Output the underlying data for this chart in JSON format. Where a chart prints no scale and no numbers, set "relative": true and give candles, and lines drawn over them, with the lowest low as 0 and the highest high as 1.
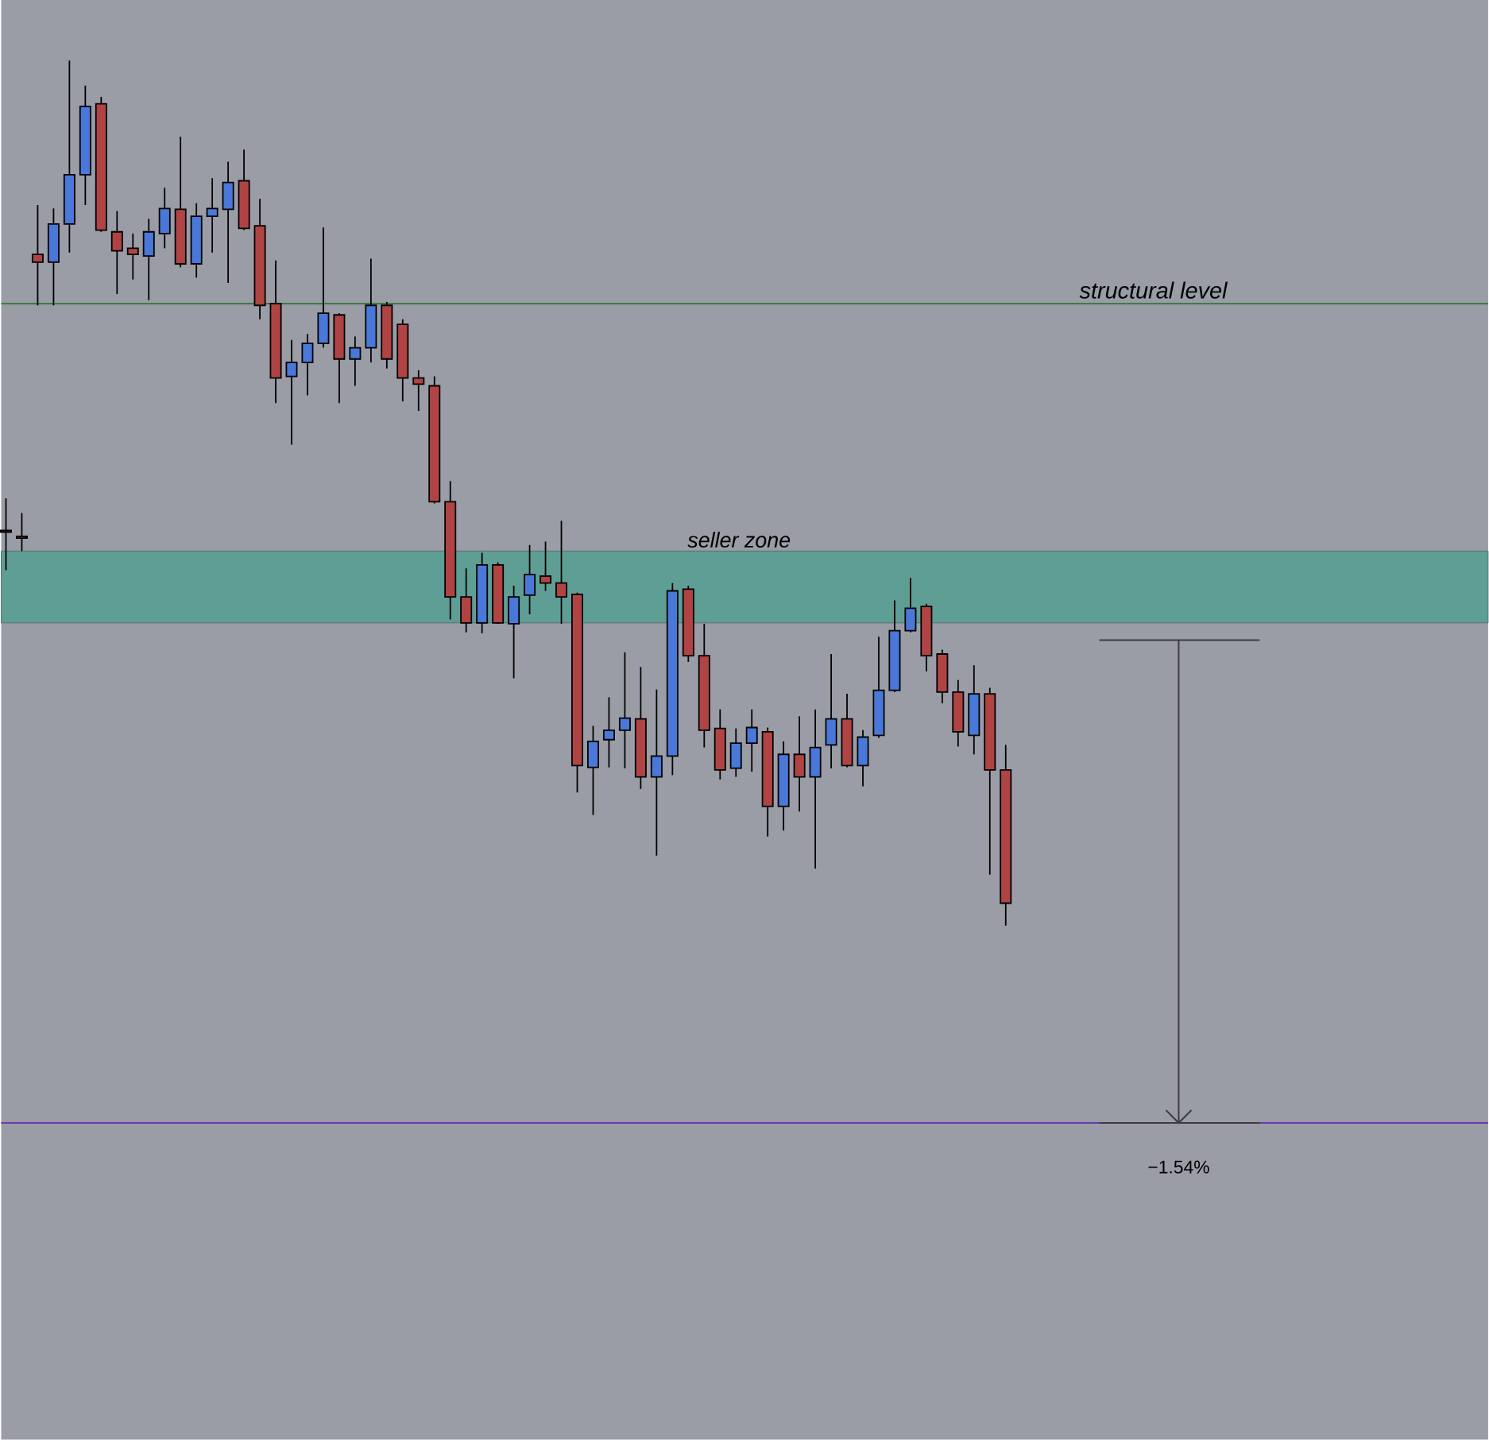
{
  "chart_data": {
    "type": "candlestick",
    "relative": true,
    "categories": [
      null,
      null,
      null,
      null,
      null,
      null,
      null,
      null,
      null,
      null,
      null,
      null,
      null,
      null,
      null,
      null,
      null,
      null,
      null,
      null,
      null,
      null,
      null,
      null,
      null,
      null,
      null,
      null,
      null,
      null,
      null,
      null,
      null,
      null,
      null,
      null,
      null,
      null,
      null,
      null,
      null,
      null,
      null,
      null,
      null,
      null,
      null,
      null,
      null,
      null,
      null,
      null,
      null,
      null,
      null,
      null,
      null,
      null,
      null,
      null,
      null,
      null,
      null,
      null
    ],
    "ohlc": [
      [
        0.457,
        0.494,
        0.411,
        0.455
      ],
      [
        0.45,
        0.477,
        0.433,
        0.448
      ],
      [
        0.776,
        0.833,
        0.717,
        0.767
      ],
      [
        0.767,
        0.829,
        0.717,
        0.811
      ],
      [
        0.811,
        1.0,
        0.778,
        0.868
      ],
      [
        0.868,
        0.971,
        0.833,
        0.947
      ],
      [
        0.95,
        0.958,
        0.802,
        0.804
      ],
      [
        0.802,
        0.826,
        0.73,
        0.78
      ],
      [
        0.783,
        0.8,
        0.747,
        0.776
      ],
      [
        0.774,
        0.817,
        0.723,
        0.802
      ],
      [
        0.8,
        0.853,
        0.783,
        0.829
      ],
      [
        0.828,
        0.912,
        0.761,
        0.765
      ],
      [
        0.765,
        0.835,
        0.749,
        0.82
      ],
      [
        0.82,
        0.864,
        0.778,
        0.829
      ],
      [
        0.828,
        0.883,
        0.743,
        0.859
      ],
      [
        0.861,
        0.897,
        0.804,
        0.806
      ],
      [
        0.809,
        0.84,
        0.701,
        0.717
      ],
      [
        0.719,
        0.769,
        0.604,
        0.633
      ],
      [
        0.635,
        0.677,
        0.556,
        0.651
      ],
      [
        0.651,
        0.684,
        0.613,
        0.673
      ],
      [
        0.673,
        0.807,
        0.668,
        0.708
      ],
      [
        0.706,
        0.708,
        0.604,
        0.655
      ],
      [
        0.655,
        0.681,
        0.624,
        0.668
      ],
      [
        0.668,
        0.771,
        0.651,
        0.717
      ],
      [
        0.717,
        0.721,
        0.644,
        0.655
      ],
      [
        0.695,
        0.701,
        0.606,
        0.633
      ],
      [
        0.633,
        0.642,
        0.595,
        0.626
      ],
      [
        0.624,
        0.635,
        0.488,
        0.49
      ],
      [
        0.49,
        0.514,
        0.354,
        0.38
      ],
      [
        0.38,
        0.413,
        0.339,
        0.35
      ],
      [
        0.35,
        0.431,
        0.338,
        0.417
      ],
      [
        0.417,
        0.42,
        0.349,
        0.35
      ],
      [
        0.349,
        0.393,
        0.286,
        0.38
      ],
      [
        0.382,
        0.44,
        0.36,
        0.406
      ],
      [
        0.404,
        0.444,
        0.387,
        0.396
      ],
      [
        0.396,
        0.468,
        0.349,
        0.38
      ],
      [
        0.383,
        0.385,
        0.154,
        0.185
      ],
      [
        0.183,
        0.231,
        0.128,
        0.213
      ],
      [
        0.215,
        0.264,
        0.183,
        0.226
      ],
      [
        0.226,
        0.316,
        0.182,
        0.24
      ],
      [
        0.239,
        0.299,
        0.158,
        0.172
      ],
      [
        0.172,
        0.273,
        0.081,
        0.196
      ],
      [
        0.196,
        0.396,
        0.174,
        0.387
      ],
      [
        0.389,
        0.393,
        0.305,
        0.312
      ],
      [
        0.312,
        0.349,
        0.206,
        0.226
      ],
      [
        0.228,
        0.25,
        0.169,
        0.18
      ],
      [
        0.182,
        0.228,
        0.172,
        0.211
      ],
      [
        0.211,
        0.25,
        0.178,
        0.229
      ],
      [
        0.224,
        0.229,
        0.103,
        0.138
      ],
      [
        0.138,
        0.213,
        0.11,
        0.198
      ],
      [
        0.198,
        0.242,
        0.132,
        0.172
      ],
      [
        0.172,
        0.25,
        0.066,
        0.206
      ],
      [
        0.209,
        0.314,
        0.182,
        0.239
      ],
      [
        0.239,
        0.268,
        0.183,
        0.185
      ],
      [
        0.185,
        0.226,
        0.161,
        0.218
      ],
      [
        0.22,
        0.334,
        0.217,
        0.272
      ],
      [
        0.272,
        0.376,
        0.27,
        0.341
      ],
      [
        0.341,
        0.402,
        0.339,
        0.367
      ],
      [
        0.369,
        0.372,
        0.294,
        0.312
      ],
      [
        0.314,
        0.319,
        0.257,
        0.27
      ],
      [
        0.27,
        0.284,
        0.207,
        0.224
      ],
      [
        0.22,
        0.301,
        0.198,
        0.268
      ],
      [
        0.268,
        0.275,
        0.059,
        0.18
      ],
      [
        0.18,
        0.209,
        0.0,
        0.026
      ]
    ],
    "colors": [
      "#b04444",
      "#b04444",
      "#b04444",
      "#4a78d8",
      "#4a78d8",
      "#4a78d8",
      "#b04444",
      "#b04444",
      "#b04444",
      "#4a78d8",
      "#4a78d8",
      "#b04444",
      "#4a78d8",
      "#4a78d8",
      "#4a78d8",
      "#b04444",
      "#b04444",
      "#b04444",
      "#4a78d8",
      "#4a78d8",
      "#4a78d8",
      "#b04444",
      "#4a78d8",
      "#4a78d8",
      "#b04444",
      "#b04444",
      "#b04444",
      "#b04444",
      "#b04444",
      "#b04444",
      "#4a78d8",
      "#b04444",
      "#4a78d8",
      "#4a78d8",
      "#b04444",
      "#b04444",
      "#b04444",
      "#4a78d8",
      "#4a78d8",
      "#4a78d8",
      "#b04444",
      "#4a78d8",
      "#4a78d8",
      "#b04444",
      "#b04444",
      "#b04444",
      "#4a78d8",
      "#4a78d8",
      "#b04444",
      "#4a78d8",
      "#b04444",
      "#4a78d8",
      "#4a78d8",
      "#b04444",
      "#4a78d8",
      "#4a78d8",
      "#4a78d8",
      "#4a78d8",
      "#b04444",
      "#b04444",
      "#b04444",
      "#4a78d8",
      "#b04444",
      "#b04444"
    ],
    "ref_lines": [
      {
        "axis": "y",
        "value": 0.719,
        "label": "structural level",
        "color": "#3f7a45"
      },
      {
        "axis": "y",
        "value": -0.228,
        "color": "#6a3ab0"
      }
    ],
    "bands": [
      {
        "axis": "y",
        "from": 0.35,
        "to": 0.433,
        "label": "seller zone",
        "color": "#5f9e94"
      }
    ],
    "annotations": [
      "−1.54%"
    ]
  }
}
